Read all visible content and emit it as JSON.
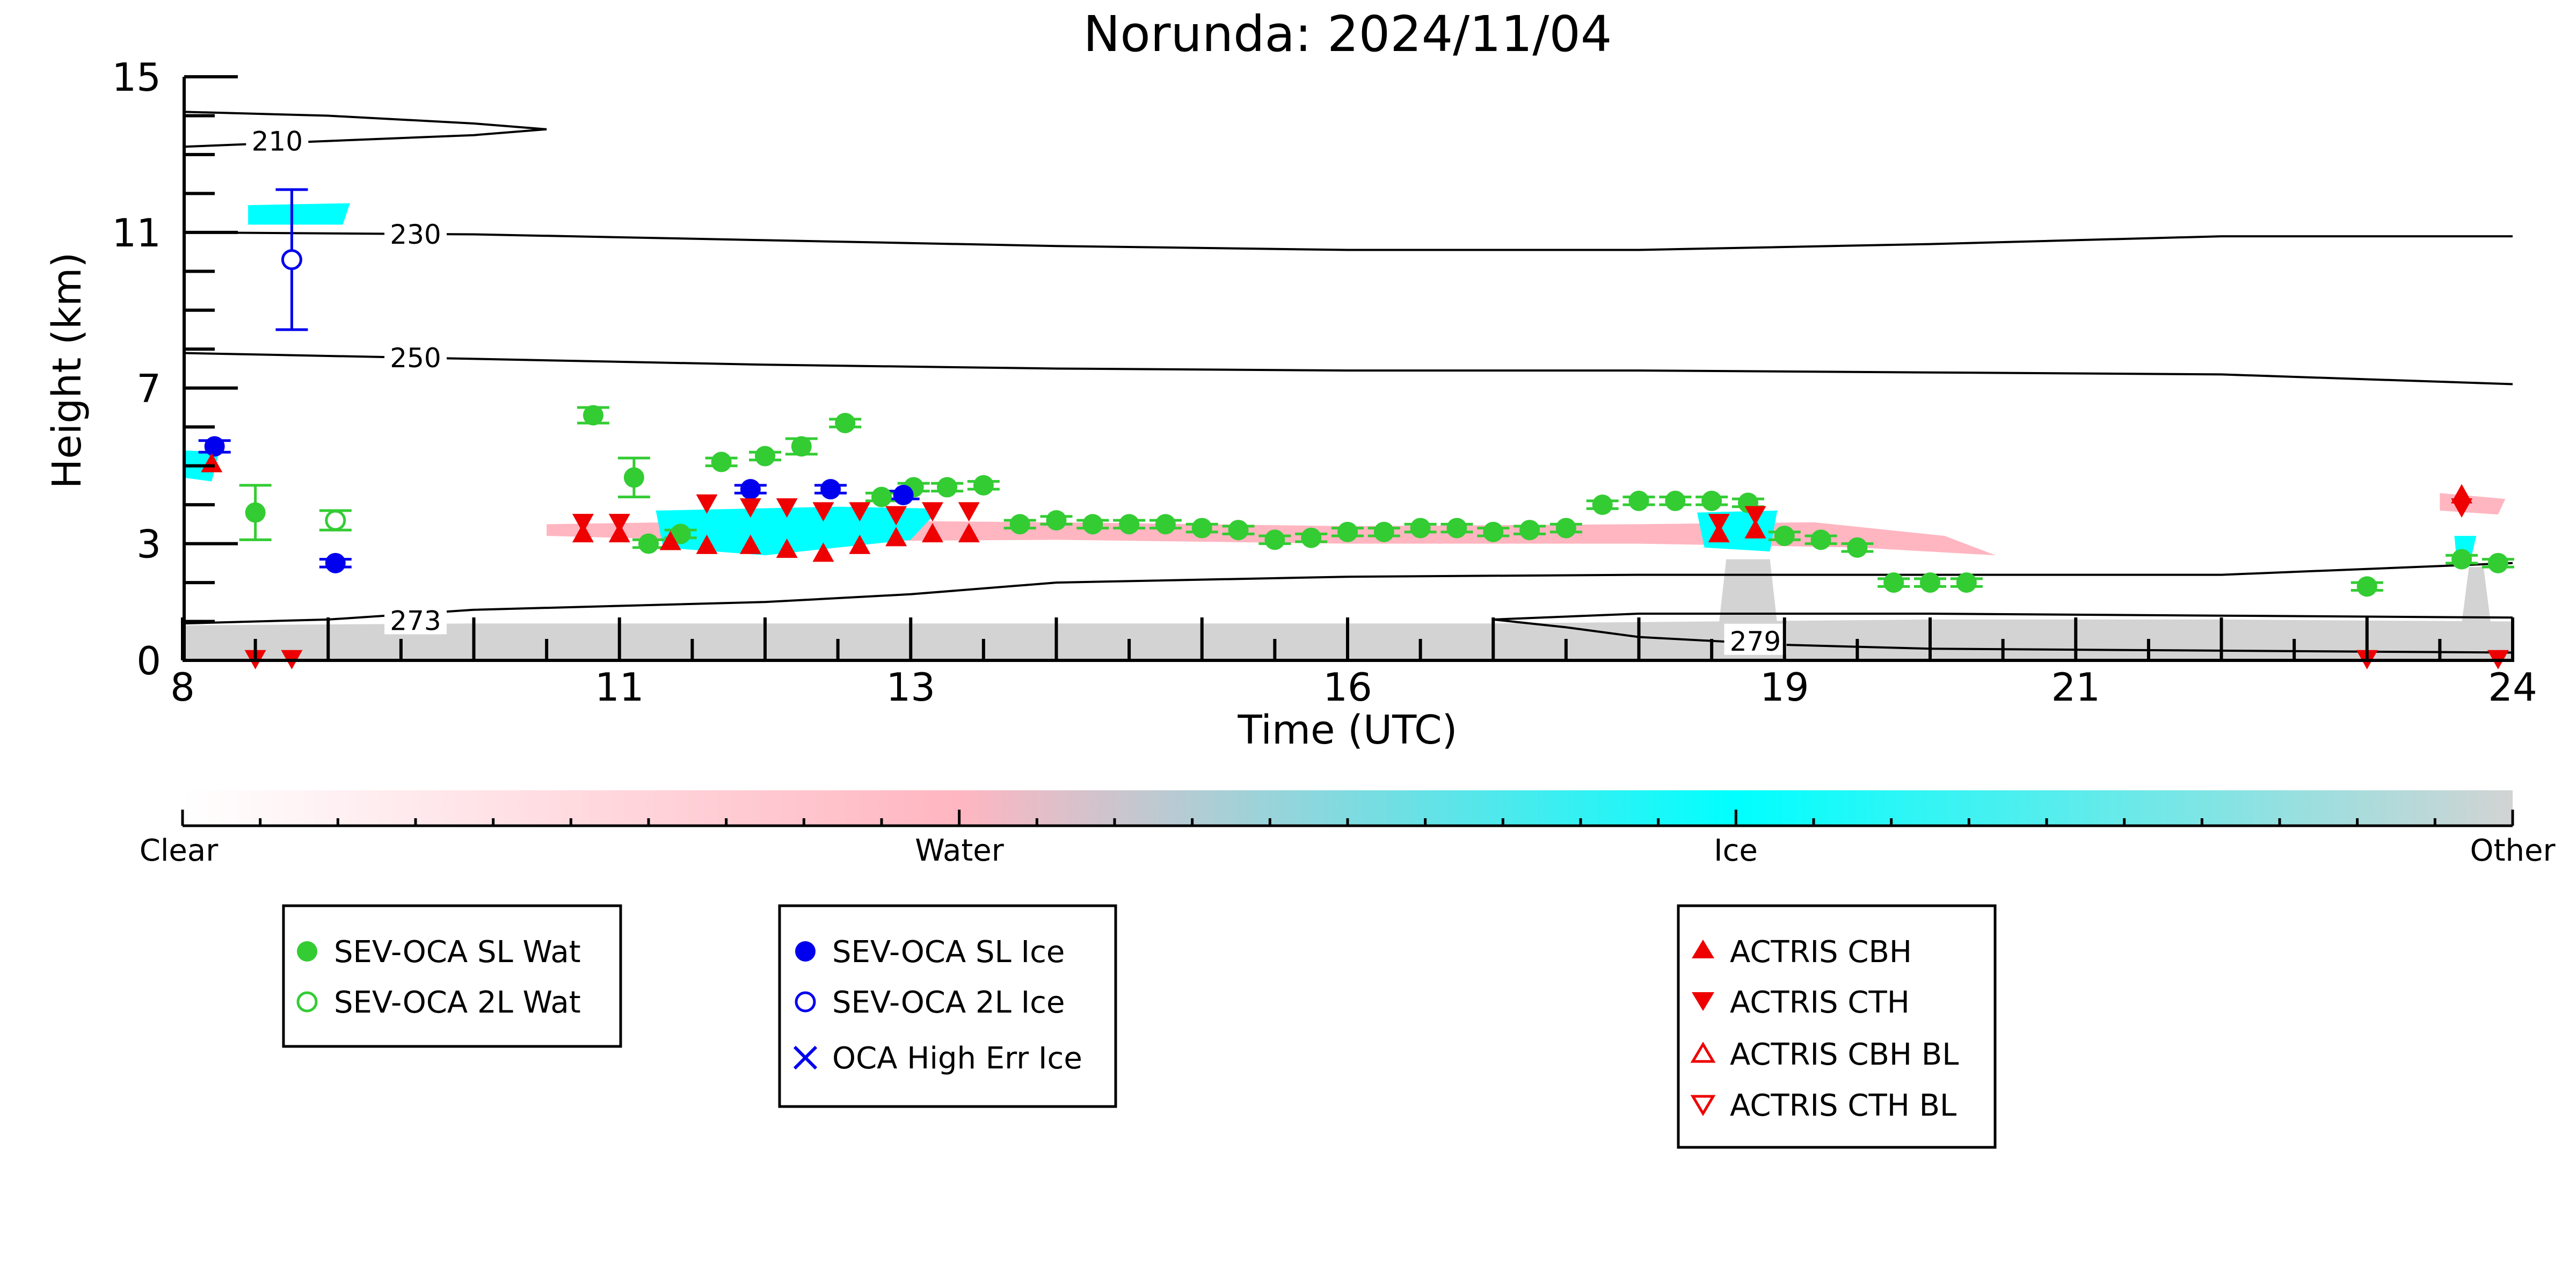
{
  "chart_data": {
    "type": "scatter",
    "title": "Norunda: 2024/11/04",
    "xlabel": "Time (UTC)",
    "ylabel": "Height (km)",
    "xlim": [
      8,
      24
    ],
    "ylim": [
      0,
      15
    ],
    "xticks": [
      8,
      11,
      13,
      16,
      19,
      21,
      24
    ],
    "yticks": [
      0,
      3,
      7,
      11,
      15
    ],
    "xtick_labels": [
      "8",
      "11",
      "13",
      "16",
      "19",
      "21",
      "24"
    ],
    "ytick_labels": [
      "0",
      "3",
      "7",
      "11",
      "15"
    ],
    "grid": false,
    "colorbar": {
      "labels": [
        "Clear",
        "Water",
        "Ice",
        "Other"
      ],
      "colors": [
        "#ffffff",
        "#ffb6c1",
        "#00ffff",
        "#d3d3d3"
      ]
    },
    "temperature_contours": [
      {
        "label": "210",
        "x": [
          8,
          9,
          10,
          10.5,
          10,
          9,
          8
        ],
        "y": [
          14.1,
          14.0,
          13.8,
          13.65,
          13.5,
          13.35,
          13.2
        ]
      },
      {
        "label": "230",
        "x": [
          8,
          10,
          12,
          14,
          16,
          18,
          20,
          22,
          24
        ],
        "y": [
          11.0,
          10.95,
          10.8,
          10.65,
          10.55,
          10.55,
          10.7,
          10.9,
          10.9
        ]
      },
      {
        "label": "250",
        "x": [
          8,
          10,
          12,
          14,
          16,
          18,
          20,
          22,
          24
        ],
        "y": [
          7.9,
          7.75,
          7.6,
          7.5,
          7.45,
          7.45,
          7.4,
          7.35,
          7.1
        ]
      },
      {
        "label": "273",
        "x": [
          8,
          9,
          10,
          11,
          12,
          13,
          14,
          16,
          18,
          20,
          22,
          24
        ],
        "y": [
          0.95,
          1.05,
          1.3,
          1.4,
          1.5,
          1.7,
          2.0,
          2.15,
          2.2,
          2.2,
          2.2,
          2.5
        ]
      },
      {
        "label": "279",
        "x": [
          17,
          17.5,
          18,
          19,
          20,
          22,
          24,
          24,
          22,
          20,
          18,
          17
        ],
        "y": [
          1.05,
          0.85,
          0.6,
          0.4,
          0.3,
          0.25,
          0.2,
          1.1,
          1.15,
          1.2,
          1.2,
          1.05
        ]
      }
    ],
    "series": [
      {
        "name": "SEV-OCA SL Wat",
        "color": "#33cc33",
        "marker": "filled-circle",
        "x": [
          8.5,
          10.82,
          11.1,
          11.2,
          11.42,
          11.7,
          12.0,
          12.25,
          12.55,
          12.8,
          13.02,
          13.25,
          13.5,
          13.75,
          14.0,
          14.25,
          14.5,
          14.75,
          15.0,
          15.25,
          15.5,
          15.75,
          16.0,
          16.25,
          16.5,
          16.75,
          17.0,
          17.25,
          17.5,
          17.75,
          18.0,
          18.25,
          18.5,
          18.75,
          19.0,
          19.25,
          19.5,
          19.75,
          20.0,
          20.25,
          23.0,
          23.65,
          23.9
        ],
        "y": [
          3.8,
          6.3,
          4.7,
          3.0,
          3.25,
          5.1,
          5.25,
          5.5,
          6.1,
          4.2,
          4.45,
          4.45,
          4.5,
          3.5,
          3.6,
          3.5,
          3.5,
          3.5,
          3.4,
          3.35,
          3.1,
          3.15,
          3.3,
          3.3,
          3.4,
          3.4,
          3.3,
          3.35,
          3.4,
          4.0,
          4.1,
          4.1,
          4.1,
          4.05,
          3.2,
          3.1,
          2.9,
          2.0,
          2.0,
          2.0,
          1.9,
          2.6,
          2.5
        ],
        "yerr": [
          0.7,
          0.2,
          0.5,
          0.1,
          0.1,
          0.1,
          0.1,
          0.2,
          0.1,
          0.1,
          0.1,
          0.1,
          0.1,
          0.1,
          0.1,
          0.1,
          0.1,
          0.1,
          0.1,
          0.1,
          0.1,
          0.1,
          0.1,
          0.1,
          0.1,
          0.1,
          0.1,
          0.1,
          0.1,
          0.1,
          0.1,
          0.1,
          0.1,
          0.1,
          0.1,
          0.1,
          0.1,
          0.1,
          0.1,
          0.1,
          0.1,
          0.1,
          0.1
        ]
      },
      {
        "name": "SEV-OCA 2L Wat",
        "color": "#33cc33",
        "marker": "open-circle",
        "x": [
          9.05
        ],
        "y": [
          3.6
        ],
        "yerr": [
          0.25
        ]
      },
      {
        "name": "SEV-OCA SL Ice",
        "color": "#0000ee",
        "marker": "filled-circle",
        "x": [
          8.22,
          9.05,
          11.9,
          12.45,
          12.95
        ],
        "y": [
          5.5,
          2.5,
          4.4,
          4.4,
          4.25
        ],
        "yerr": [
          0.15,
          0.1,
          0.1,
          0.1,
          0.1
        ]
      },
      {
        "name": "SEV-OCA 2L Ice",
        "color": "#0000ee",
        "marker": "open-circle",
        "x": [
          8.75
        ],
        "y": [
          10.3
        ],
        "yerr": [
          1.8
        ]
      },
      {
        "name": "OCA High Err Ice",
        "color": "#0000ee",
        "marker": "x",
        "x": [],
        "y": []
      },
      {
        "name": "ACTRIS CBH",
        "color": "#ee0000",
        "marker": "filled-triangle-up",
        "x": [
          8.2,
          10.75,
          11.0,
          11.35,
          11.6,
          11.9,
          12.15,
          12.4,
          12.65,
          12.9,
          13.15,
          13.4,
          18.55,
          18.8,
          23.65
        ],
        "y": [
          5.0,
          3.2,
          3.2,
          3.0,
          2.9,
          2.9,
          2.8,
          2.7,
          2.9,
          3.1,
          3.2,
          3.2,
          3.2,
          3.3,
          4.2
        ]
      },
      {
        "name": "ACTRIS CTH",
        "color": "#ee0000",
        "marker": "filled-triangle-down",
        "x": [
          8.5,
          8.75,
          10.75,
          11.0,
          11.6,
          11.9,
          12.15,
          12.4,
          12.65,
          12.9,
          13.15,
          13.4,
          18.55,
          18.8,
          23.0,
          23.65,
          23.9
        ],
        "y": [
          0.1,
          0.1,
          3.6,
          3.6,
          4.1,
          4.0,
          4.0,
          3.9,
          3.9,
          3.8,
          3.9,
          3.9,
          3.6,
          3.8,
          0.1,
          4.0,
          0.1
        ]
      },
      {
        "name": "ACTRIS CBH BL",
        "color": "#ee0000",
        "marker": "open-triangle-up",
        "x": [],
        "y": []
      },
      {
        "name": "ACTRIS CTH BL",
        "color": "#ee0000",
        "marker": "open-triangle-down",
        "x": [],
        "y": []
      }
    ],
    "legends": [
      [
        "SEV-OCA SL Wat",
        "SEV-OCA 2L Wat"
      ],
      [
        "SEV-OCA SL Ice",
        "SEV-OCA 2L Ice",
        "OCA High Err Ice"
      ],
      [
        "ACTRIS CBH",
        "ACTRIS CTH",
        "ACTRIS CBH BL",
        "ACTRIS CTH BL"
      ]
    ]
  }
}
